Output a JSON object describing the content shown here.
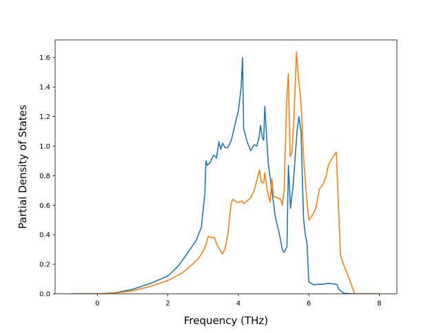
{
  "chart_data": {
    "type": "line",
    "title": "",
    "xlabel": "Frequency (THz)",
    "ylabel": "Partial Density of States",
    "xlim": [
      -1.2,
      8.5
    ],
    "ylim": [
      0.0,
      1.72
    ],
    "xticks": [
      0,
      2,
      4,
      6,
      8
    ],
    "xtick_labels": [
      "0",
      "2",
      "4",
      "6",
      "8"
    ],
    "yticks": [
      0.0,
      0.2,
      0.4,
      0.6,
      0.8,
      1.0,
      1.2,
      1.4,
      1.6
    ],
    "ytick_labels": [
      "0.0",
      "0.2",
      "0.4",
      "0.6",
      "0.8",
      "1.0",
      "1.2",
      "1.4",
      "1.6"
    ],
    "grid": false,
    "legend": "none",
    "series": [
      {
        "color": "#1f77b4",
        "x": [
          -0.75,
          0.0,
          0.5,
          1.0,
          1.5,
          2.0,
          2.3,
          2.6,
          2.8,
          2.95,
          3.05,
          3.08,
          3.12,
          3.2,
          3.3,
          3.38,
          3.45,
          3.5,
          3.55,
          3.62,
          3.7,
          3.8,
          3.9,
          4.0,
          4.08,
          4.12,
          4.15,
          4.25,
          4.35,
          4.45,
          4.52,
          4.58,
          4.63,
          4.68,
          4.72,
          4.75,
          4.85,
          4.95,
          5.05,
          5.15,
          5.25,
          5.3,
          5.38,
          5.42,
          5.48,
          5.55,
          5.62,
          5.67,
          5.72,
          5.78,
          5.85,
          5.9,
          5.95,
          6.0,
          6.15,
          6.25,
          6.4,
          6.55,
          6.6,
          6.75,
          6.8,
          6.85,
          7.0,
          7.25,
          8.0
        ],
        "y": [
          0.0,
          0.0,
          0.007,
          0.03,
          0.07,
          0.12,
          0.19,
          0.29,
          0.36,
          0.45,
          0.68,
          0.9,
          0.87,
          0.89,
          0.94,
          0.92,
          1.03,
          0.98,
          1.02,
          0.99,
          0.99,
          1.04,
          1.14,
          1.24,
          1.4,
          1.6,
          1.12,
          1.03,
          0.97,
          1.01,
          1.0,
          1.05,
          1.14,
          1.06,
          1.04,
          1.27,
          0.88,
          0.7,
          0.52,
          0.42,
          0.3,
          0.28,
          0.32,
          0.87,
          0.58,
          0.72,
          0.95,
          1.11,
          1.2,
          1.1,
          0.51,
          0.4,
          0.34,
          0.08,
          0.06,
          0.065,
          0.065,
          0.07,
          0.07,
          0.065,
          0.063,
          0.03,
          0.003,
          0.0,
          0.0
        ]
      },
      {
        "color": "#ff7f0e",
        "x": [
          -0.75,
          0.0,
          0.5,
          1.0,
          1.5,
          2.0,
          2.4,
          2.7,
          2.9,
          3.0,
          3.08,
          3.15,
          3.25,
          3.32,
          3.4,
          3.5,
          3.55,
          3.62,
          3.7,
          3.8,
          3.85,
          3.95,
          4.05,
          4.1,
          4.15,
          4.25,
          4.35,
          4.45,
          4.55,
          4.6,
          4.65,
          4.72,
          4.75,
          4.82,
          4.9,
          4.95,
          5.0,
          5.1,
          5.2,
          5.25,
          5.3,
          5.37,
          5.42,
          5.47,
          5.52,
          5.58,
          5.65,
          5.7,
          5.78,
          5.85,
          5.92,
          6.0,
          6.1,
          6.2,
          6.3,
          6.4,
          6.5,
          6.55,
          6.62,
          6.72,
          6.78,
          6.85,
          6.9,
          7.0,
          7.15,
          7.3,
          8.0
        ],
        "y": [
          0.0,
          0.0,
          0.005,
          0.02,
          0.05,
          0.09,
          0.14,
          0.2,
          0.25,
          0.29,
          0.33,
          0.39,
          0.38,
          0.38,
          0.33,
          0.29,
          0.27,
          0.3,
          0.4,
          0.62,
          0.64,
          0.62,
          0.62,
          0.63,
          0.61,
          0.63,
          0.65,
          0.7,
          0.79,
          0.84,
          0.76,
          0.75,
          0.82,
          0.7,
          0.62,
          0.78,
          0.66,
          0.65,
          0.64,
          0.6,
          0.7,
          1.3,
          1.49,
          0.93,
          0.95,
          1.2,
          1.64,
          1.48,
          1.3,
          0.93,
          0.7,
          0.5,
          0.53,
          0.58,
          0.71,
          0.74,
          0.8,
          0.87,
          0.9,
          0.94,
          0.96,
          0.55,
          0.26,
          0.19,
          0.1,
          0.0,
          0.0
        ]
      }
    ]
  }
}
